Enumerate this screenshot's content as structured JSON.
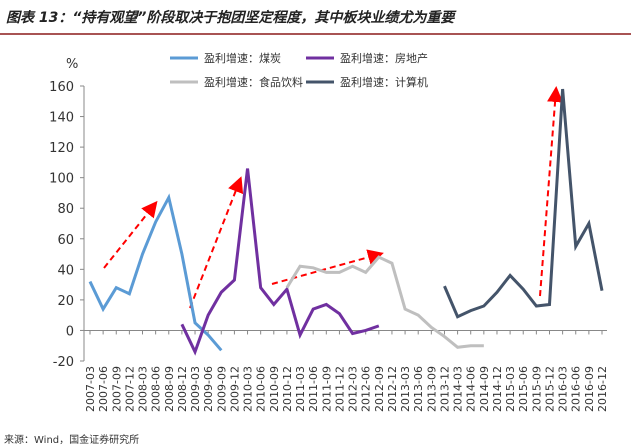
{
  "chart_data": {
    "type": "line",
    "title": "图表 13：“持有观望”阶段取决于抱团坚定程度，其中板块业绩尤为重要",
    "y_label": "%",
    "source": "来源：Wind，国金证券研究所",
    "categories": [
      "2007-03",
      "2007-06",
      "2007-09",
      "2007-12",
      "2008-03",
      "2008-06",
      "2008-09",
      "2008-12",
      "2009-03",
      "2009-06",
      "2009-09",
      "2009-12",
      "2010-03",
      "2010-06",
      "2010-09",
      "2010-12",
      "2011-03",
      "2011-06",
      "2011-09",
      "2011-12",
      "2012-03",
      "2012-06",
      "2012-09",
      "2012-12",
      "2013-03",
      "2013-06",
      "2013-09",
      "2013-12",
      "2014-03",
      "2014-06",
      "2014-09",
      "2014-12",
      "2015-03",
      "2015-06",
      "2015-09",
      "2015-12",
      "2016-03",
      "2016-06",
      "2016-09",
      "2016-12"
    ],
    "series": [
      {
        "name": "盈利增速：煤炭",
        "color": "#5b9bd5",
        "values": [
          32,
          14,
          28,
          24,
          50,
          71,
          87,
          50,
          5,
          -3,
          -13,
          null,
          null,
          null,
          null,
          null,
          null,
          null,
          null,
          null,
          null,
          null,
          null,
          null,
          null,
          null,
          null,
          null,
          null,
          null,
          null,
          null,
          null,
          null,
          null,
          null,
          null,
          null,
          null,
          null
        ]
      },
      {
        "name": "盈利增速：房地产",
        "color": "#7030a0",
        "values": [
          null,
          null,
          null,
          null,
          null,
          null,
          null,
          4,
          -14,
          10,
          25,
          33,
          106,
          28,
          17,
          27,
          -3,
          14,
          17,
          11,
          -2,
          0,
          3,
          null,
          null,
          null,
          null,
          null,
          null,
          null,
          null,
          null,
          null,
          null,
          null,
          null,
          null,
          null,
          null,
          null
        ]
      },
      {
        "name": "盈利增速：食品饮料",
        "color": "#bfbfbf",
        "values": [
          null,
          null,
          null,
          null,
          null,
          null,
          null,
          null,
          null,
          null,
          null,
          null,
          null,
          null,
          null,
          28,
          42,
          41,
          38,
          38,
          42,
          38,
          48,
          44,
          14,
          10,
          2,
          -4,
          -11,
          -10,
          -10,
          null,
          null,
          null,
          null,
          null,
          null,
          null,
          null,
          null
        ]
      },
      {
        "name": "盈利增速：计算机",
        "color": "#44546a",
        "values": [
          null,
          null,
          null,
          null,
          null,
          null,
          null,
          null,
          null,
          null,
          null,
          null,
          null,
          null,
          null,
          null,
          null,
          null,
          null,
          null,
          null,
          null,
          null,
          null,
          null,
          null,
          null,
          29,
          9,
          13,
          16,
          25,
          36,
          27,
          16,
          17,
          158,
          55,
          70,
          26
        ]
      }
    ],
    "ylim": [
      -20,
      160
    ],
    "yticks": [
      -20,
      0,
      20,
      40,
      60,
      80,
      100,
      120,
      140,
      160
    ]
  }
}
